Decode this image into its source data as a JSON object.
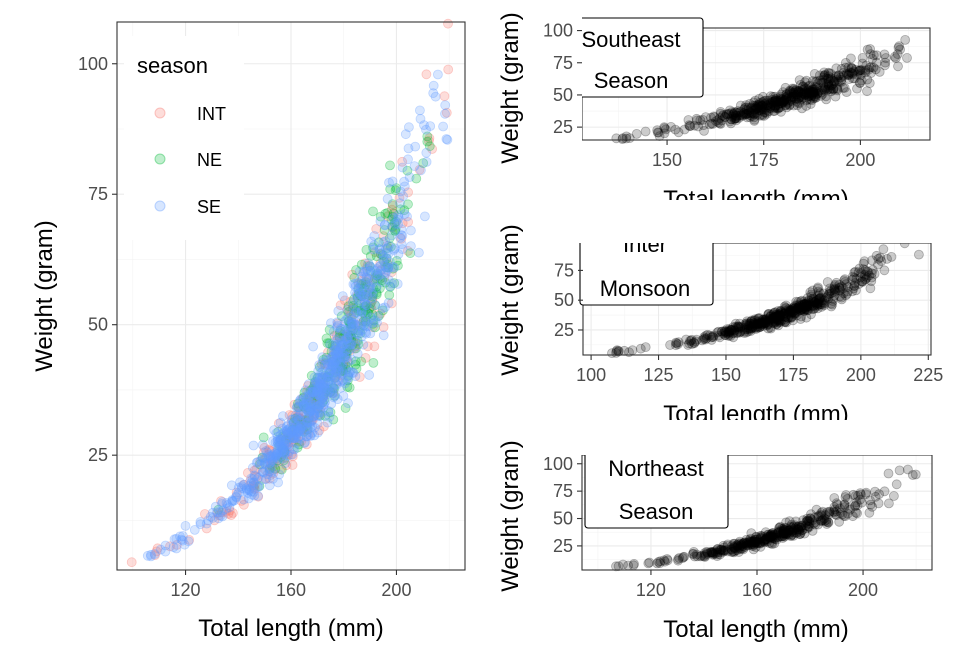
{
  "chart_data": [
    {
      "id": "combined",
      "type": "scatter",
      "xlabel": "Total length (mm)",
      "ylabel": "Weight (gram)",
      "xlim": [
        94,
        226
      ],
      "ylim": [
        3,
        108
      ],
      "xticks": [
        120,
        160,
        200
      ],
      "yticks": [
        25,
        50,
        75,
        100
      ],
      "legend": {
        "title": "season",
        "position": "top-left",
        "entries": [
          {
            "label": "INT",
            "color": "#F8766D"
          },
          {
            "label": "NE",
            "color": "#00BA38"
          },
          {
            "label": "SE",
            "color": "#619CFF"
          }
        ]
      },
      "series": [
        {
          "name": "INT",
          "color": "#F8766D",
          "x_range": [
            98,
            222
          ],
          "curve": {
            "a": 8.5e-08,
            "b": 3.87
          },
          "samples": 260
        },
        {
          "name": "NE",
          "color": "#00BA38",
          "x_range": [
            130,
            214
          ],
          "curve": {
            "a": 8.5e-08,
            "b": 3.87
          },
          "samples": 260
        },
        {
          "name": "SE",
          "color": "#619CFF",
          "x_range": [
            104,
            221
          ],
          "curve": {
            "a": 8.5e-08,
            "b": 3.87
          },
          "samples": 700
        }
      ]
    },
    {
      "id": "southeast",
      "type": "scatter",
      "annotation": [
        "Southeast",
        "Season"
      ],
      "xlabel": "Total length (mm)",
      "ylabel": "Weight (gram)",
      "xlim": [
        128,
        218
      ],
      "ylim": [
        15,
        102
      ],
      "xticks": [
        150,
        175,
        200
      ],
      "yticks": [
        25,
        50,
        75,
        100
      ],
      "series": [
        {
          "name": "SE",
          "color": "#000000",
          "x_range": [
            131,
            213
          ],
          "curve": {
            "a": 8.5e-08,
            "b": 3.87
          },
          "samples": 500
        }
      ]
    },
    {
      "id": "inter-monsoon",
      "type": "scatter",
      "annotation": [
        "Inter",
        "Monsoon"
      ],
      "xlabel": "Total length (mm)",
      "ylabel": "Weight (gram)",
      "xlim": [
        97,
        226
      ],
      "ylim": [
        4,
        98
      ],
      "xticks": [
        100,
        125,
        150,
        175,
        200,
        225
      ],
      "yticks": [
        25,
        50,
        75
      ],
      "series": [
        {
          "name": "INT",
          "color": "#000000",
          "x_range": [
            104,
            222
          ],
          "curve": {
            "a": 8.5e-08,
            "b": 3.87
          },
          "samples": 500
        }
      ]
    },
    {
      "id": "northeast",
      "type": "scatter",
      "annotation": [
        "Northeast",
        "Season"
      ],
      "xlabel": "Total length (mm)",
      "ylabel": "Weight (gram)",
      "xlim": [
        94,
        226
      ],
      "ylim": [
        3,
        108
      ],
      "xticks": [
        120,
        160,
        200
      ],
      "yticks": [
        25,
        50,
        75,
        100
      ],
      "series": [
        {
          "name": "NE",
          "color": "#000000",
          "x_range": [
            98,
            222
          ],
          "curve": {
            "a": 8.5e-08,
            "b": 3.87
          },
          "samples": 400
        }
      ]
    }
  ]
}
